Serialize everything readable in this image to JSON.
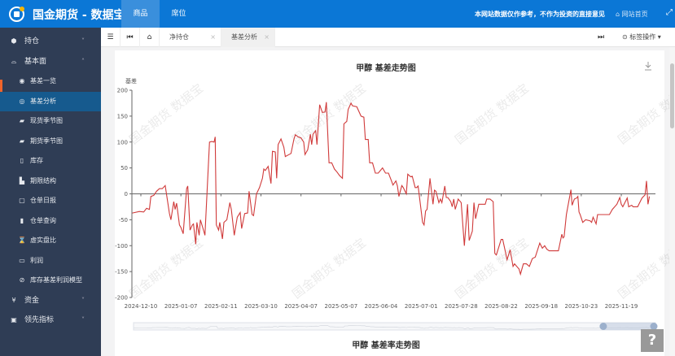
{
  "header": {
    "title": "国金期货 - 数据宝",
    "tabs": [
      {
        "label": "商品",
        "active": true
      },
      {
        "label": "席位",
        "active": false
      }
    ],
    "notice": "本网站数据仅作参考，不作为投资的直接意见",
    "home_link": "网站首页",
    "accent": "#0b77d6"
  },
  "sidebar": {
    "items": [
      {
        "label": "持仓",
        "icon": "cube-icon",
        "level": "top",
        "expanded": false
      },
      {
        "label": "基本面",
        "icon": "inbox-icon",
        "level": "top",
        "expanded": true
      },
      {
        "label": "基差一览",
        "icon": "eye-icon",
        "level": "sub"
      },
      {
        "label": "基差分析",
        "icon": "analysis-icon",
        "level": "sub",
        "active": true
      },
      {
        "label": "现货季节图",
        "icon": "leaf-icon",
        "level": "sub"
      },
      {
        "label": "期货季节图",
        "icon": "leaf-icon",
        "level": "sub"
      },
      {
        "label": "库存",
        "icon": "tablet-icon",
        "level": "sub"
      },
      {
        "label": "期限结构",
        "icon": "area-chart-icon",
        "level": "sub"
      },
      {
        "label": "仓单日报",
        "icon": "book-open-icon",
        "level": "sub"
      },
      {
        "label": "仓单查询",
        "icon": "map-icon",
        "level": "sub"
      },
      {
        "label": "虚实盘比",
        "icon": "hourglass-icon",
        "level": "sub"
      },
      {
        "label": "利润",
        "icon": "money-icon",
        "level": "sub"
      },
      {
        "label": "库存基差利润模型",
        "icon": "ban-icon",
        "level": "sub"
      },
      {
        "label": "资金",
        "icon": "yen-icon",
        "level": "top",
        "expanded": false
      },
      {
        "label": "领先指标",
        "icon": "bus-icon",
        "level": "top",
        "expanded": false
      }
    ]
  },
  "tabbar": {
    "tabs": [
      {
        "label": "净持仓",
        "active": false
      },
      {
        "label": "基差分析",
        "active": true
      }
    ],
    "ops_label": "标签操作"
  },
  "watermark": "国金期货 数据宝",
  "second_chart_title": "甲醇 基差率走势图",
  "help_label": "?",
  "chart_data": {
    "type": "line",
    "title": "甲醇 基差走势图",
    "ylabel": "基差",
    "xlabel": "",
    "ylim": [
      -200,
      200
    ],
    "yticks": [
      200,
      150,
      100,
      50,
      0,
      -50,
      -100,
      -150,
      -200
    ],
    "xticks": [
      "2024-12-10",
      "2025-01-07",
      "2025-02-11",
      "2025-03-10",
      "2025-04-07",
      "2025-05-07",
      "2025-06-04",
      "2025-07-01",
      "2025-07-28",
      "2025-08-22",
      "2025-09-18",
      "2025-10-23",
      "2025-11-19"
    ],
    "color": "#d03a3a",
    "grid": false,
    "datazoom": [
      0.9,
      1.0
    ],
    "points": [
      [
        "2024-12-04",
        -37
      ],
      [
        "2024-12-09",
        -34
      ],
      [
        "2024-12-12",
        -35
      ],
      [
        "2024-12-14",
        -28
      ],
      [
        "2024-12-16",
        -30
      ],
      [
        "2024-12-17",
        -5
      ],
      [
        "2024-12-19",
        -3
      ],
      [
        "2024-12-21",
        5
      ],
      [
        "2024-12-23",
        10
      ],
      [
        "2024-12-25",
        10
      ],
      [
        "2024-12-27",
        16
      ],
      [
        "2024-12-30",
        -38
      ],
      [
        "2024-12-31",
        -50
      ],
      [
        "2025-01-02",
        -15
      ],
      [
        "2025-01-03",
        -30
      ],
      [
        "2025-01-04",
        -18
      ],
      [
        "2025-01-06",
        -60
      ],
      [
        "2025-01-07",
        -65
      ],
      [
        "2025-01-09",
        -77
      ],
      [
        "2025-01-12",
        10
      ],
      [
        "2025-01-13",
        15
      ],
      [
        "2025-01-15",
        -70
      ],
      [
        "2025-01-17",
        -60
      ],
      [
        "2025-01-18",
        -58
      ],
      [
        "2025-01-20",
        -97
      ],
      [
        "2025-01-21",
        -55
      ],
      [
        "2025-01-23",
        -80
      ],
      [
        "2025-01-24",
        -50
      ],
      [
        "2025-01-27",
        -72
      ],
      [
        "2025-01-28",
        -80
      ],
      [
        "2025-02-01",
        100
      ],
      [
        "2025-02-03",
        101
      ],
      [
        "2025-02-05",
        100
      ],
      [
        "2025-02-06",
        110
      ],
      [
        "2025-02-07",
        -60
      ],
      [
        "2025-02-09",
        -70
      ],
      [
        "2025-02-10",
        -55
      ],
      [
        "2025-02-12",
        -87
      ],
      [
        "2025-02-13",
        -55
      ],
      [
        "2025-02-15",
        -50
      ],
      [
        "2025-02-17",
        -17
      ],
      [
        "2025-02-18",
        -30
      ],
      [
        "2025-02-20",
        -80
      ],
      [
        "2025-02-22",
        -45
      ],
      [
        "2025-02-24",
        -36
      ],
      [
        "2025-02-25",
        -67
      ],
      [
        "2025-02-27",
        -38
      ],
      [
        "2025-03-01",
        -37
      ],
      [
        "2025-03-02",
        5
      ],
      [
        "2025-03-04",
        -40
      ],
      [
        "2025-03-05",
        -42
      ],
      [
        "2025-03-07",
        0
      ],
      [
        "2025-03-09",
        12
      ],
      [
        "2025-03-11",
        30
      ],
      [
        "2025-03-12",
        48
      ],
      [
        "2025-03-13",
        45
      ],
      [
        "2025-03-15",
        53
      ],
      [
        "2025-03-17",
        20
      ],
      [
        "2025-03-18",
        82
      ],
      [
        "2025-03-20",
        81
      ],
      [
        "2025-03-21",
        30
      ],
      [
        "2025-03-22",
        95
      ],
      [
        "2025-03-24",
        106
      ],
      [
        "2025-03-26",
        90
      ],
      [
        "2025-03-27",
        72
      ],
      [
        "2025-03-29",
        75
      ],
      [
        "2025-03-31",
        78
      ],
      [
        "2025-04-02",
        105
      ],
      [
        "2025-04-03",
        114
      ],
      [
        "2025-04-05",
        110
      ],
      [
        "2025-04-07",
        108
      ],
      [
        "2025-04-09",
        100
      ],
      [
        "2025-04-10",
        76
      ],
      [
        "2025-04-12",
        85
      ],
      [
        "2025-04-14",
        115
      ],
      [
        "2025-04-15",
        95
      ],
      [
        "2025-04-16",
        115
      ],
      [
        "2025-04-18",
        122
      ],
      [
        "2025-04-19",
        95
      ],
      [
        "2025-04-21",
        172
      ],
      [
        "2025-04-23",
        157
      ],
      [
        "2025-04-25",
        158
      ],
      [
        "2025-04-26",
        177
      ],
      [
        "2025-04-28",
        60
      ],
      [
        "2025-04-30",
        60
      ],
      [
        "2025-05-02",
        48
      ],
      [
        "2025-05-04",
        42
      ],
      [
        "2025-05-06",
        35
      ],
      [
        "2025-05-08",
        30
      ],
      [
        "2025-05-09",
        135
      ],
      [
        "2025-05-11",
        140
      ],
      [
        "2025-05-12",
        163
      ],
      [
        "2025-05-14",
        175
      ],
      [
        "2025-05-15",
        170
      ],
      [
        "2025-05-18",
        168
      ],
      [
        "2025-05-21",
        150
      ],
      [
        "2025-05-23",
        148
      ],
      [
        "2025-05-24",
        105
      ],
      [
        "2025-05-26",
        105
      ],
      [
        "2025-05-27",
        60
      ],
      [
        "2025-05-29",
        60
      ],
      [
        "2025-05-31",
        40
      ],
      [
        "2025-06-02",
        40
      ],
      [
        "2025-06-05",
        50
      ],
      [
        "2025-06-07",
        40
      ],
      [
        "2025-06-09",
        40
      ],
      [
        "2025-06-11",
        25
      ],
      [
        "2025-06-12",
        17
      ],
      [
        "2025-06-14",
        25
      ],
      [
        "2025-06-15",
        15
      ],
      [
        "2025-06-16",
        -5
      ],
      [
        "2025-06-18",
        16
      ],
      [
        "2025-06-19",
        12
      ],
      [
        "2025-06-21",
        0
      ],
      [
        "2025-06-22",
        38
      ],
      [
        "2025-06-24",
        33
      ],
      [
        "2025-06-25",
        34
      ],
      [
        "2025-06-27",
        12
      ],
      [
        "2025-06-28",
        12
      ],
      [
        "2025-06-29",
        15
      ],
      [
        "2025-07-02",
        -55
      ],
      [
        "2025-07-03",
        -60
      ],
      [
        "2025-07-04",
        -33
      ],
      [
        "2025-07-05",
        -30
      ],
      [
        "2025-07-07",
        30
      ],
      [
        "2025-07-09",
        -20
      ],
      [
        "2025-07-10",
        7
      ],
      [
        "2025-07-11",
        5
      ],
      [
        "2025-07-13",
        -17
      ],
      [
        "2025-07-14",
        -10
      ],
      [
        "2025-07-15",
        -17
      ],
      [
        "2025-07-17",
        15
      ],
      [
        "2025-07-18",
        -7
      ],
      [
        "2025-07-19",
        -7
      ],
      [
        "2025-07-21",
        -15
      ],
      [
        "2025-07-22",
        -25
      ],
      [
        "2025-07-23",
        -10
      ],
      [
        "2025-07-24",
        -30
      ],
      [
        "2025-07-25",
        -20
      ],
      [
        "2025-07-26",
        -10
      ],
      [
        "2025-07-28",
        -17
      ],
      [
        "2025-07-30",
        -100
      ],
      [
        "2025-08-01",
        -20
      ],
      [
        "2025-08-02",
        -90
      ],
      [
        "2025-08-04",
        -72
      ],
      [
        "2025-08-05",
        -17
      ],
      [
        "2025-08-06",
        -48
      ],
      [
        "2025-08-08",
        -20
      ],
      [
        "2025-08-12",
        -20
      ],
      [
        "2025-08-13",
        -10
      ],
      [
        "2025-08-15",
        -10
      ],
      [
        "2025-08-17",
        -15
      ],
      [
        "2025-08-18",
        -115
      ],
      [
        "2025-08-19",
        -118
      ],
      [
        "2025-08-22",
        -88
      ],
      [
        "2025-08-23",
        -88
      ],
      [
        "2025-08-26",
        -127
      ],
      [
        "2025-08-28",
        -108
      ],
      [
        "2025-08-30",
        -140
      ],
      [
        "2025-08-31",
        -135
      ],
      [
        "2025-09-03",
        -145
      ],
      [
        "2025-09-04",
        -155
      ],
      [
        "2025-09-06",
        -135
      ],
      [
        "2025-09-08",
        -135
      ],
      [
        "2025-09-10",
        -140
      ],
      [
        "2025-09-12",
        -125
      ],
      [
        "2025-09-14",
        -122
      ],
      [
        "2025-09-17",
        -95
      ],
      [
        "2025-09-19",
        -105
      ],
      [
        "2025-09-21",
        -100
      ],
      [
        "2025-09-23",
        -107
      ],
      [
        "2025-09-25",
        -110
      ],
      [
        "2025-10-03",
        -110
      ],
      [
        "2025-10-06",
        -78
      ],
      [
        "2025-10-07",
        -85
      ],
      [
        "2025-10-08",
        -83
      ],
      [
        "2025-10-10",
        -40
      ],
      [
        "2025-10-14",
        8
      ],
      [
        "2025-10-15",
        -22
      ],
      [
        "2025-10-17",
        -10
      ],
      [
        "2025-10-19",
        -8
      ],
      [
        "2025-10-20",
        -5
      ],
      [
        "2025-10-21",
        -35
      ],
      [
        "2025-10-22",
        -40
      ],
      [
        "2025-10-24",
        -55
      ],
      [
        "2025-10-26",
        -50
      ],
      [
        "2025-10-29",
        -52
      ],
      [
        "2025-10-30",
        -55
      ],
      [
        "2025-10-31",
        -45
      ],
      [
        "2025-11-02",
        -58
      ],
      [
        "2025-11-03",
        -40
      ],
      [
        "2025-11-11",
        -40
      ],
      [
        "2025-11-13",
        -30
      ],
      [
        "2025-11-16",
        -20
      ],
      [
        "2025-11-18",
        -7
      ],
      [
        "2025-11-19",
        -20
      ],
      [
        "2025-11-20",
        -25
      ],
      [
        "2025-11-23",
        -8
      ],
      [
        "2025-11-24",
        -25
      ],
      [
        "2025-11-26",
        -22
      ],
      [
        "2025-11-27",
        -25
      ],
      [
        "2025-11-30",
        -25
      ],
      [
        "2025-12-03",
        -8
      ],
      [
        "2025-12-05",
        -2
      ],
      [
        "2025-12-06",
        25
      ],
      [
        "2025-12-07",
        -20
      ],
      [
        "2025-12-08",
        -5
      ]
    ]
  }
}
